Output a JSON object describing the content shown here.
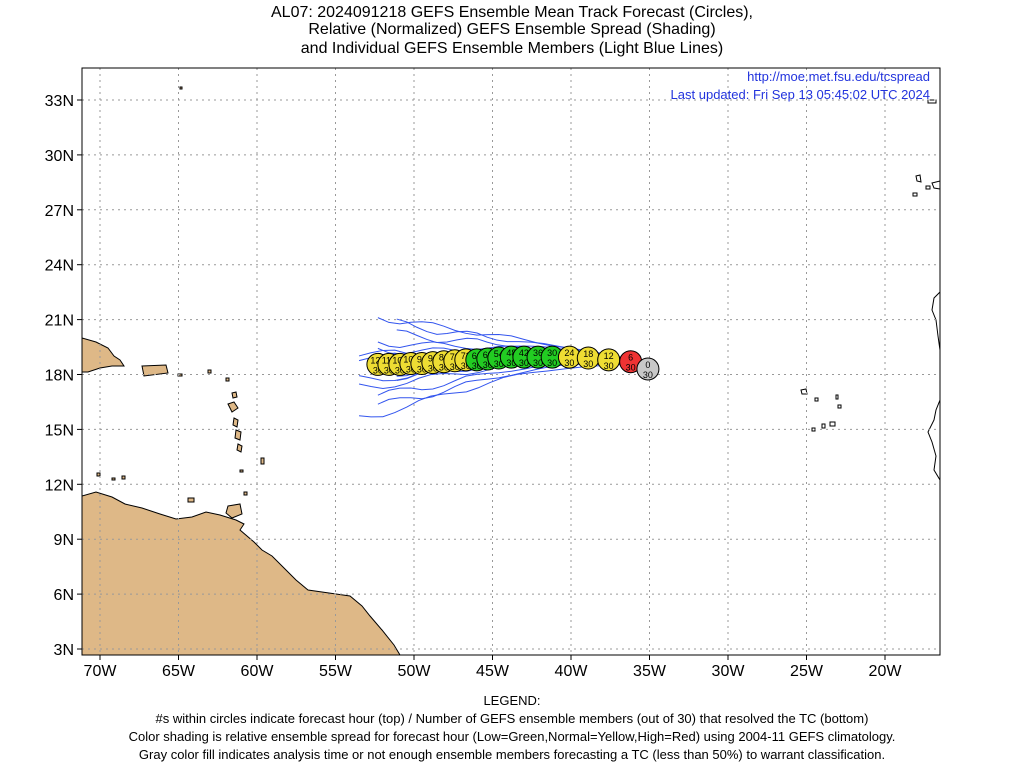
{
  "title": {
    "line1": "AL07: 2024091218 GEFS Ensemble Mean Track Forecast (Circles),",
    "line2": "Relative (Normalized) GEFS Ensemble Spread (Shading)",
    "line3": "and Individual GEFS Ensemble Members (Light Blue Lines)"
  },
  "credit": {
    "url": "http://moe.met.fsu.edu/tcspread",
    "updated": "Last updated: Fri Sep 13 05:45:02 UTC 2024"
  },
  "axes": {
    "lon_ticks": [
      "70W",
      "65W",
      "60W",
      "55W",
      "50W",
      "45W",
      "40W",
      "35W",
      "30W",
      "25W",
      "20W"
    ],
    "lat_ticks": [
      "33N",
      "30N",
      "27N",
      "24N",
      "21N",
      "18N",
      "15N",
      "12N",
      "9N",
      "6N",
      "3N"
    ]
  },
  "colors": {
    "low": "#22cc22",
    "normal": "#eedd33",
    "high": "#ee3333",
    "analysis": "#c8c8c8",
    "member_track": "#3355ee",
    "land": "#deb887"
  },
  "mean_track": [
    {
      "hour": "0",
      "members": "30",
      "lon": -35.1,
      "lat": 18.3,
      "class": "analysis"
    },
    {
      "hour": "6",
      "members": "30",
      "lon": -36.2,
      "lat": 18.7,
      "class": "high"
    },
    {
      "hour": "12",
      "members": "30",
      "lon": -37.6,
      "lat": 18.8,
      "class": "normal"
    },
    {
      "hour": "18",
      "members": "30",
      "lon": -38.9,
      "lat": 18.9,
      "class": "normal"
    },
    {
      "hour": "24",
      "members": "30",
      "lon": -40.1,
      "lat": 18.95,
      "class": "normal"
    },
    {
      "hour": "30",
      "members": "30",
      "lon": -41.2,
      "lat": 18.95,
      "class": "low"
    },
    {
      "hour": "36",
      "members": "30",
      "lon": -42.1,
      "lat": 18.95,
      "class": "low"
    },
    {
      "hour": "42",
      "members": "30",
      "lon": -43.0,
      "lat": 18.95,
      "class": "low"
    },
    {
      "hour": "48",
      "members": "30",
      "lon": -43.8,
      "lat": 18.95,
      "class": "low"
    },
    {
      "hour": "54",
      "members": "30",
      "lon": -44.6,
      "lat": 18.9,
      "class": "low"
    },
    {
      "hour": "60",
      "members": "30",
      "lon": -45.3,
      "lat": 18.85,
      "class": "low"
    },
    {
      "hour": "66",
      "members": "30",
      "lon": -46.0,
      "lat": 18.8,
      "class": "low"
    },
    {
      "hour": "72",
      "members": "30",
      "lon": -46.7,
      "lat": 18.8,
      "class": "normal"
    },
    {
      "hour": "78",
      "members": "30",
      "lon": -47.4,
      "lat": 18.75,
      "class": "normal"
    },
    {
      "hour": "84",
      "members": "30",
      "lon": -48.1,
      "lat": 18.7,
      "class": "normal"
    },
    {
      "hour": "90",
      "members": "30",
      "lon": -48.8,
      "lat": 18.65,
      "class": "normal"
    },
    {
      "hour": "96",
      "members": "30",
      "lon": -49.5,
      "lat": 18.6,
      "class": "normal"
    },
    {
      "hour": "102",
      "members": "30",
      "lon": -50.2,
      "lat": 18.6,
      "class": "normal"
    },
    {
      "hour": "108",
      "members": "30",
      "lon": -50.9,
      "lat": 18.55,
      "class": "normal"
    },
    {
      "hour": "114",
      "members": "30",
      "lon": -51.6,
      "lat": 18.55,
      "class": "normal"
    },
    {
      "hour": "120",
      "members": "30",
      "lon": -52.3,
      "lat": 18.55,
      "class": "normal"
    }
  ],
  "legend": {
    "heading": "LEGEND:",
    "line1": "#s within circles indicate forecast hour (top) / Number of GEFS ensemble members (out of 30) that resolved the TC (bottom)",
    "line2": "Color shading is relative ensemble spread for forecast hour (Low=Green,Normal=Yellow,High=Red) using 2004-11 GEFS climatology.",
    "line3": "Gray color fill indicates analysis time or not enough ensemble members forecasting a TC (less than 50%) to warrant classification."
  }
}
